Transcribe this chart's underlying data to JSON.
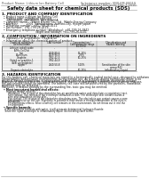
{
  "bg_color": "#ffffff",
  "header_left": "Product Name: Lithium Ion Battery Cell",
  "header_right_line1": "Substance number: SNX-6M-00010",
  "header_right_line2": "Established / Revision: Dec.7.2010",
  "title": "Safety data sheet for chemical products (SDS)",
  "section1_title": "1. PRODUCT AND COMPANY IDENTIFICATION",
  "section1_lines": [
    "  • Product name: Lithium Ion Battery Cell",
    "  • Product code: Cylindrical type cell",
    "      SNX-B6B00, SNX-B6B00, SNX-B6B00A",
    "  • Company name:    Sanyo Electric Co., Ltd.  Mobile Energy Company",
    "  • Address:          2001  Kamitakatani, Sumoto-City, Hyogo, Japan",
    "  • Telephone number:  +81-799-26-4111",
    "  • Fax number:  +81-799-26-4129",
    "  • Emergency telephone number (Weekdays): +81-799-26-3842",
    "                                      (Night and holiday): +81-799-26-4101"
  ],
  "section2_title": "2. COMPOSITION / INFORMATION ON INGREDIENTS",
  "section2_sub": "  • Substance or preparation: Preparation",
  "section2_sub2": "  • Information about the chemical nature of product:",
  "table_col1_header": "Chemical substance",
  "table_col1_sub": "General name",
  "table_col2_header": "CAS number",
  "table_col3_header": "Concentration /",
  "table_col3_header2": "Concentration range",
  "table_col3_header3": "(50-60%)",
  "table_col4_header": "Classification and",
  "table_col4_header2": "hazard labeling",
  "table_rows": [
    [
      "Lithium cobalt oxide",
      "-",
      "-",
      "-"
    ],
    [
      "(LiMn-Co)O(x)",
      "",
      "",
      ""
    ],
    [
      "Iron",
      "7439-89-6",
      "15-25%",
      "-"
    ],
    [
      "Aluminum",
      "7429-90-5",
      "2-5%",
      "-"
    ],
    [
      "Graphite",
      "7782-42-5",
      "10-25%",
      "-"
    ],
    [
      "(listed as graphite-1",
      "7782-44-9",
      "",
      ""
    ],
    [
      "(A/B) on graphite)",
      "",
      "",
      ""
    ],
    [
      "Copper",
      "7440-50-8",
      "5-10%",
      "Sensitization of the skin"
    ],
    [
      "",
      "",
      "",
      "group R42"
    ],
    [
      "Organic electrolyte",
      "-",
      "10-25%",
      "Inflammatory liquid"
    ]
  ],
  "section3_title": "3. HAZARDS IDENTIFICATION",
  "section3_para_lines": [
    "For this battery cell, chemical materials are stored in a hermetically sealed metal case, designed to withstand",
    "temperatures and pressure environments during normal use. As a result, during normal use, there is no",
    "physical danger of explosion or evaporation and no release or leakage of battery electrolyte leakage.",
    "However, if exposed to a fire, added mechanical shocks, disintegrated, extreem electric stress, mis-use,",
    "the gas release cannot be operated. The battery cell case will be punctured by the particles, hazardous",
    "materials may be released.",
    "Moreover, if heated strongly by the surrounding fire, toxic gas may be emitted."
  ],
  "section3_bullet1": "  • Most important hazard and effects:",
  "section3_human": "    Human health effects:",
  "section3_human_lines": [
    "        Inhalation: The release of the electrolyte has an anesthesia action and stimulates a respiratory tract.",
    "        Skin contact: The release of the electrolyte stimulates a skin. The electrolyte skin contact causes a",
    "        sore and stimulation on the skin.",
    "        Eye contact: The release of the electrolyte stimulates eyes. The electrolyte eye contact causes a sore",
    "        and stimulation on the eye. Especially, a substance that causes a strong inflammation of the eyes is",
    "        contained.",
    "        Environmental effects: Since a battery cell remains in the environment, do not throw out it into the",
    "        environment."
  ],
  "section3_specific": "  • Specific hazards:",
  "section3_specific_lines": [
    "    If the electrolyte contacts with water, it will generate detrimental hydrogen fluoride.",
    "    Since the liquid electrolyte is inflammatory liquid, do not bring close to fire."
  ]
}
